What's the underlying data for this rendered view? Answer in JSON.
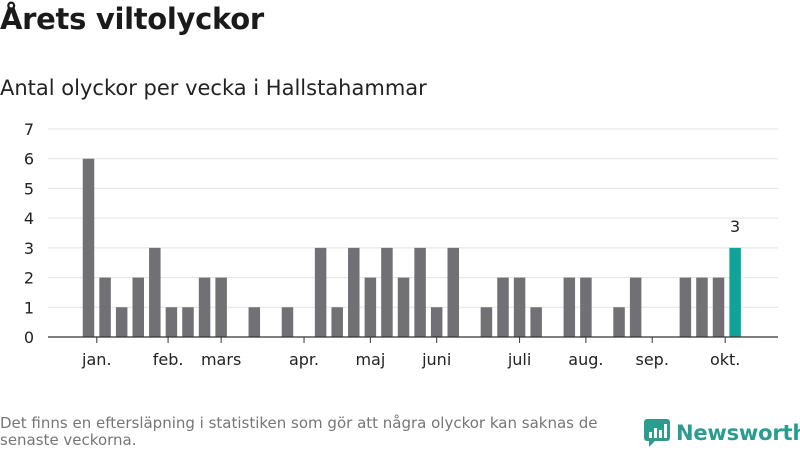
{
  "title": "Årets viltolyckor",
  "subtitle": "Antal olyckor per vecka i Hallstahammar",
  "footnote": "Det finns en eftersläpning i statistiken som gör att några olyckor kan saknas de senaste veckorna.",
  "brand": {
    "name": "Newsworthy",
    "color": "#2a9d8f"
  },
  "chart_data": {
    "type": "bar",
    "title": "Antal olyckor per vecka i Hallstahammar",
    "xlabel": "",
    "ylabel": "",
    "ylim": [
      0,
      7
    ],
    "yticks": [
      0,
      1,
      2,
      3,
      4,
      5,
      6,
      7
    ],
    "grid": true,
    "bar_color": "#707075",
    "highlight_color": "#0fa39a",
    "weeks": [
      1,
      2,
      3,
      4,
      5,
      6,
      7,
      8,
      9,
      10,
      11,
      12,
      13,
      14,
      15,
      16,
      17,
      18,
      19,
      20,
      21,
      22,
      23,
      24,
      25,
      26,
      27,
      28,
      29,
      30,
      31,
      32,
      33,
      34,
      35,
      36,
      37,
      38,
      39,
      40
    ],
    "values": [
      6,
      2,
      1,
      2,
      3,
      1,
      1,
      2,
      2,
      0,
      1,
      0,
      1,
      0,
      3,
      1,
      3,
      2,
      3,
      2,
      3,
      1,
      3,
      0,
      1,
      2,
      2,
      1,
      0,
      2,
      2,
      0,
      1,
      2,
      0,
      0,
      2,
      2,
      2,
      3
    ],
    "highlight_index": 39,
    "highlight_label": "3",
    "month_labels": [
      {
        "label": "jan.",
        "week": 1.5
      },
      {
        "label": "feb.",
        "week": 5.8
      },
      {
        "label": "mars",
        "week": 9.0
      },
      {
        "label": "apr.",
        "week": 14.0
      },
      {
        "label": "maj",
        "week": 18.0
      },
      {
        "label": "juni",
        "week": 22.0
      },
      {
        "label": "juli",
        "week": 27.0
      },
      {
        "label": "aug.",
        "week": 31.0
      },
      {
        "label": "sep.",
        "week": 35.0
      },
      {
        "label": "okt.",
        "week": 39.4
      }
    ]
  }
}
